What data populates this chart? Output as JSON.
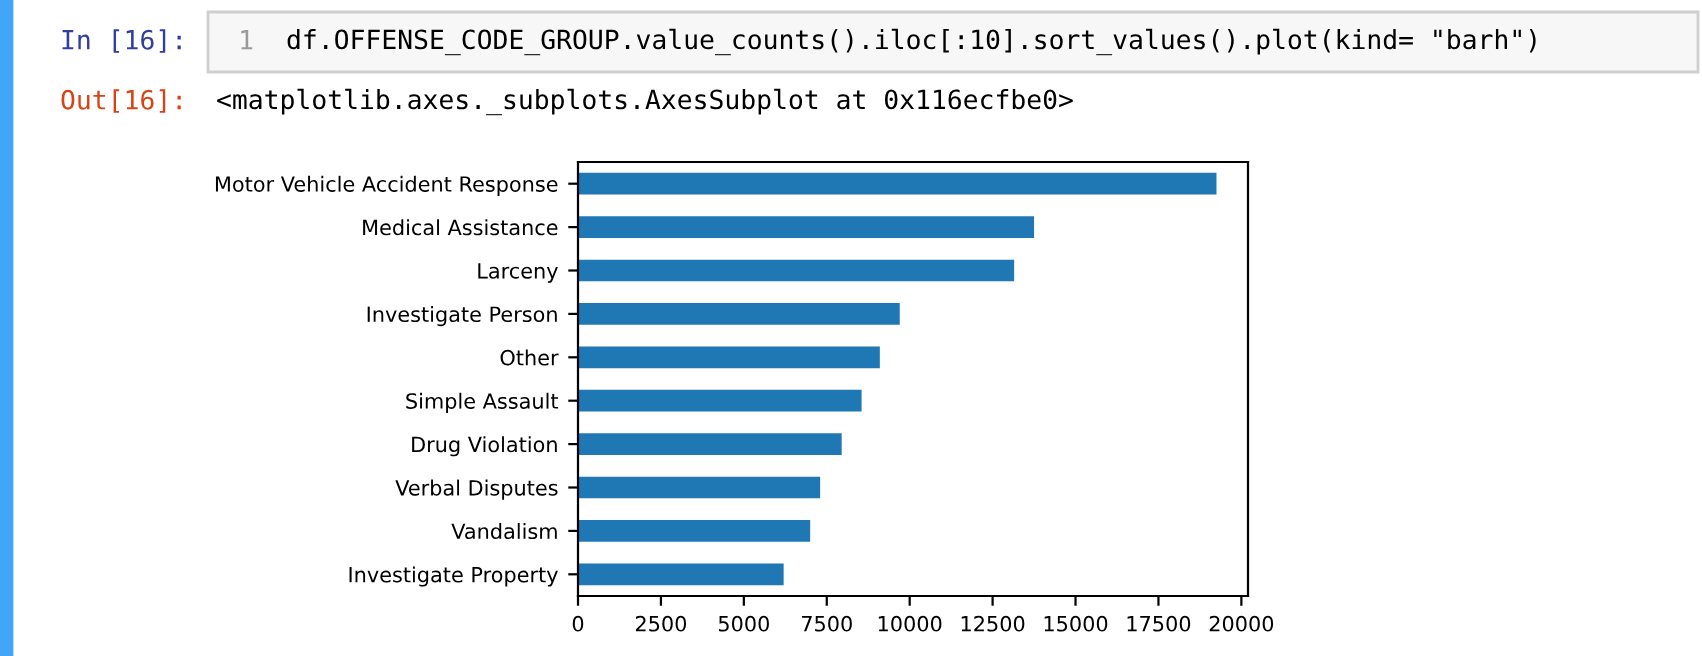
{
  "chart_data": {
    "type": "bar",
    "orientation": "horizontal",
    "categories": [
      "Motor Vehicle Accident Response",
      "Medical Assistance",
      "Larceny",
      "Investigate Person",
      "Other",
      "Simple Assault",
      "Drug Violation",
      "Verbal Disputes",
      "Vandalism",
      "Investigate Property"
    ],
    "values": [
      19250,
      13750,
      13150,
      9700,
      9100,
      8550,
      7950,
      7300,
      7000,
      6200
    ],
    "color": "#1f77b4",
    "xlim": [
      0,
      20200
    ],
    "xticks": [
      0,
      2500,
      5000,
      7500,
      10000,
      12500,
      15000,
      17500,
      20000
    ],
    "grid": false,
    "legend": false,
    "annotations": [
      "In [16]:",
      "1",
      "df.OFFENSE_CODE_GROUP.value_counts().iloc[:10].sort_values().plot(kind= \"barh\")",
      "Out[16]:",
      "<matplotlib.axes._subplots.AxesSubplot at 0x116ecfbe0>"
    ]
  }
}
